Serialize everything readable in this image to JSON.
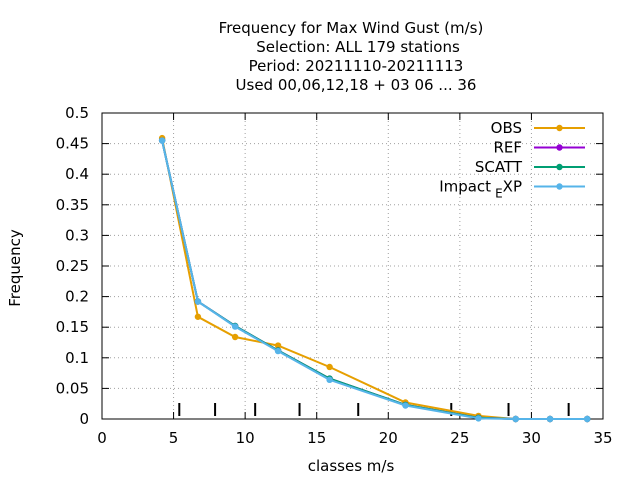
{
  "chart_data": {
    "type": "line",
    "title_lines": [
      "Frequency  for Max Wind Gust (m/s)",
      "Selection: ALL    179 stations",
      "Period: 20211110-20211113",
      "Used  00,06,12,18 + 03 06 ... 36"
    ],
    "xlabel": "classes m/s",
    "ylabel": "Frequency",
    "xlim": [
      0,
      35
    ],
    "ylim": [
      0,
      0.5
    ],
    "x_ticks": [
      0,
      5,
      10,
      15,
      20,
      25,
      30,
      35
    ],
    "y_ticks": [
      0,
      0.05,
      0.1,
      0.15,
      0.2,
      0.25,
      0.3,
      0.35,
      0.4,
      0.45,
      0.5
    ],
    "x_tick_labels": [
      "0",
      "5",
      "10",
      "15",
      "20",
      "25",
      "30",
      "35"
    ],
    "y_tick_labels": [
      "0",
      "0.05",
      "0.1",
      "0.15",
      "0.2",
      "0.25",
      "0.3",
      "0.35",
      "0.4",
      "0.45",
      "0.5"
    ],
    "class_boundaries": [
      5.4,
      7.9,
      10.7,
      13.8,
      17.9,
      24.4,
      28.4,
      32.6
    ],
    "grid": true,
    "legend_position": "top-right",
    "series": [
      {
        "name": "OBS",
        "color": "#e69f00",
        "x": [
          4.2,
          6.7,
          9.3,
          12.3,
          15.9,
          21.2,
          26.3,
          28.9,
          31.3,
          33.9
        ],
        "y": [
          0.459,
          0.167,
          0.134,
          0.12,
          0.085,
          0.027,
          0.005,
          0.0,
          0.0,
          0.0
        ]
      },
      {
        "name": "REF",
        "color": "#9400d3",
        "x": [
          4.2,
          6.7,
          9.3,
          12.3,
          15.9,
          21.2,
          26.3,
          28.9,
          31.3,
          33.9
        ],
        "y": [
          0.455,
          0.192,
          0.152,
          0.112,
          0.066,
          0.023,
          0.002,
          0.0,
          0.0,
          0.0
        ]
      },
      {
        "name": "SCATT",
        "color": "#009e73",
        "x": [
          4.2,
          6.7,
          9.3,
          12.3,
          15.9,
          21.2,
          26.3,
          28.9,
          31.3,
          33.9
        ],
        "y": [
          0.455,
          0.192,
          0.152,
          0.112,
          0.066,
          0.023,
          0.002,
          0.0,
          0.0,
          0.0
        ]
      },
      {
        "name": "Impact_EXP",
        "legend_main": "Impact",
        "legend_sub": "E",
        "legend_tail": "XP",
        "color": "#56b4e9",
        "x": [
          4.2,
          6.7,
          9.3,
          12.3,
          15.9,
          21.2,
          26.3,
          28.9,
          31.3,
          33.9
        ],
        "y": [
          0.455,
          0.192,
          0.151,
          0.111,
          0.064,
          0.022,
          0.001,
          0.0,
          0.0,
          0.0
        ]
      }
    ]
  }
}
